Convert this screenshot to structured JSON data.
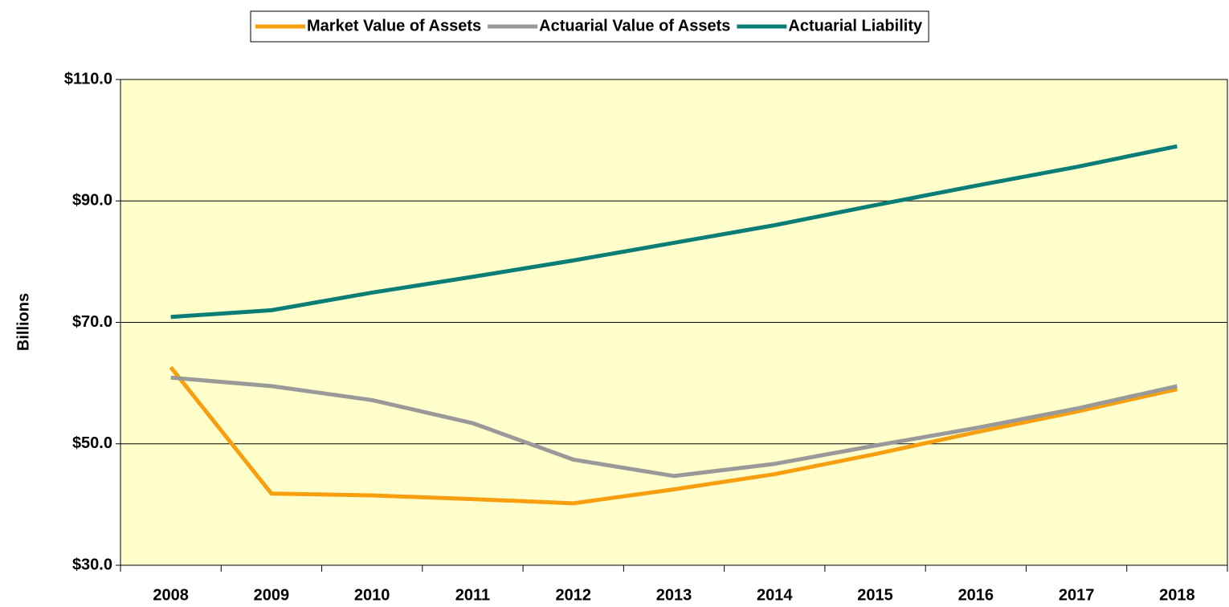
{
  "chart_data": {
    "type": "line",
    "y_label": "Billions",
    "categories": [
      "2008",
      "2009",
      "2010",
      "2011",
      "2012",
      "2013",
      "2014",
      "2015",
      "2016",
      "2017",
      "2018"
    ],
    "series": [
      {
        "name": "Market Value of Assets",
        "color": "#f79f0f",
        "values": [
          62.6,
          41.8,
          41.5,
          40.9,
          40.2,
          42.5,
          45.0,
          48.3,
          51.9,
          55.3,
          59.0
        ]
      },
      {
        "name": "Actuarial Value of Assets",
        "color": "#999999",
        "values": [
          60.9,
          59.5,
          57.2,
          53.4,
          47.4,
          44.7,
          46.7,
          49.7,
          52.6,
          55.8,
          59.5
        ]
      },
      {
        "name": "Actuarial Liability",
        "color": "#0b7d77",
        "values": [
          70.9,
          72.0,
          74.9,
          77.5,
          80.2,
          83.1,
          86.0,
          89.3,
          92.5,
          95.6,
          99.0
        ]
      }
    ],
    "ylim": [
      30,
      110
    ],
    "yticks": [
      {
        "value": 30,
        "label": "$30.0"
      },
      {
        "value": 50,
        "label": "$50.0"
      },
      {
        "value": 70,
        "label": "$70.0"
      },
      {
        "value": 90,
        "label": "$90.0"
      },
      {
        "value": 110,
        "label": "$110.0"
      }
    ],
    "grid": true,
    "plot_background": "#ffffcc",
    "legend": "top"
  }
}
